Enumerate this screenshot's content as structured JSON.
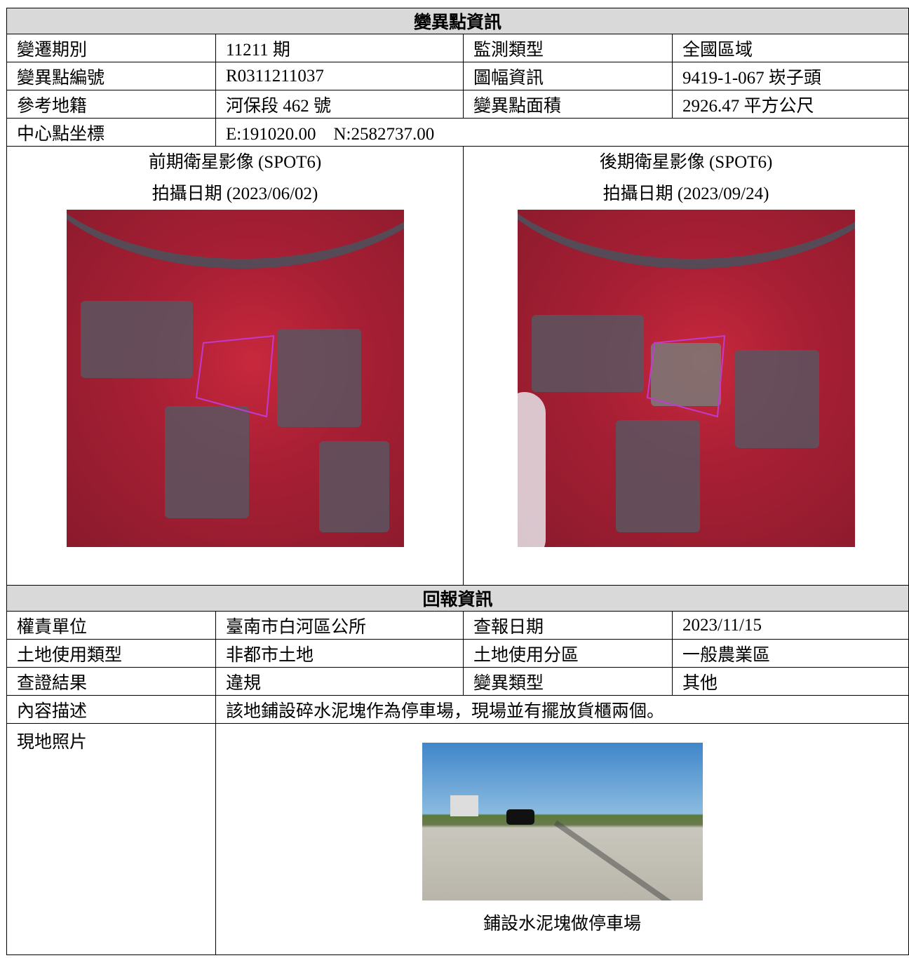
{
  "change_info": {
    "title": "變異點資訊",
    "rows": [
      [
        "變遷期別",
        "11211 期",
        "監測類型",
        "全國區域"
      ],
      [
        "變異點編號",
        "R0311211037",
        "圖幅資訊",
        "9419-1-067 崁子頭"
      ],
      [
        "參考地籍",
        "河保段 462 號",
        "變異點面積",
        "2926.47 平方公尺"
      ]
    ],
    "coordinate": {
      "label": "中心點坐標",
      "value": "E:191020.00　N:2582737.00"
    },
    "images": [
      {
        "caption": "前期衛星影像 (SPOT6)",
        "date": "拍攝日期 (2023/06/02)"
      },
      {
        "caption": "後期衛星影像 (SPOT6)",
        "date": "拍攝日期 (2023/09/24)"
      }
    ]
  },
  "report_info": {
    "title": "回報資訊",
    "rows": [
      [
        "權責單位",
        "臺南市白河區公所",
        "查報日期",
        "2023/11/15"
      ],
      [
        "土地使用類型",
        "非都市土地",
        "土地使用分區",
        "一般農業區"
      ],
      [
        "查證結果",
        "違規",
        "變異類型",
        "其他"
      ]
    ],
    "description": {
      "label": "內容描述",
      "text": "該地鋪設碎水泥塊作為停車場，現場並有擺放貨櫃兩個。"
    },
    "photo": {
      "label": "現地照片",
      "caption": "鋪設水泥塊做停車場"
    }
  }
}
